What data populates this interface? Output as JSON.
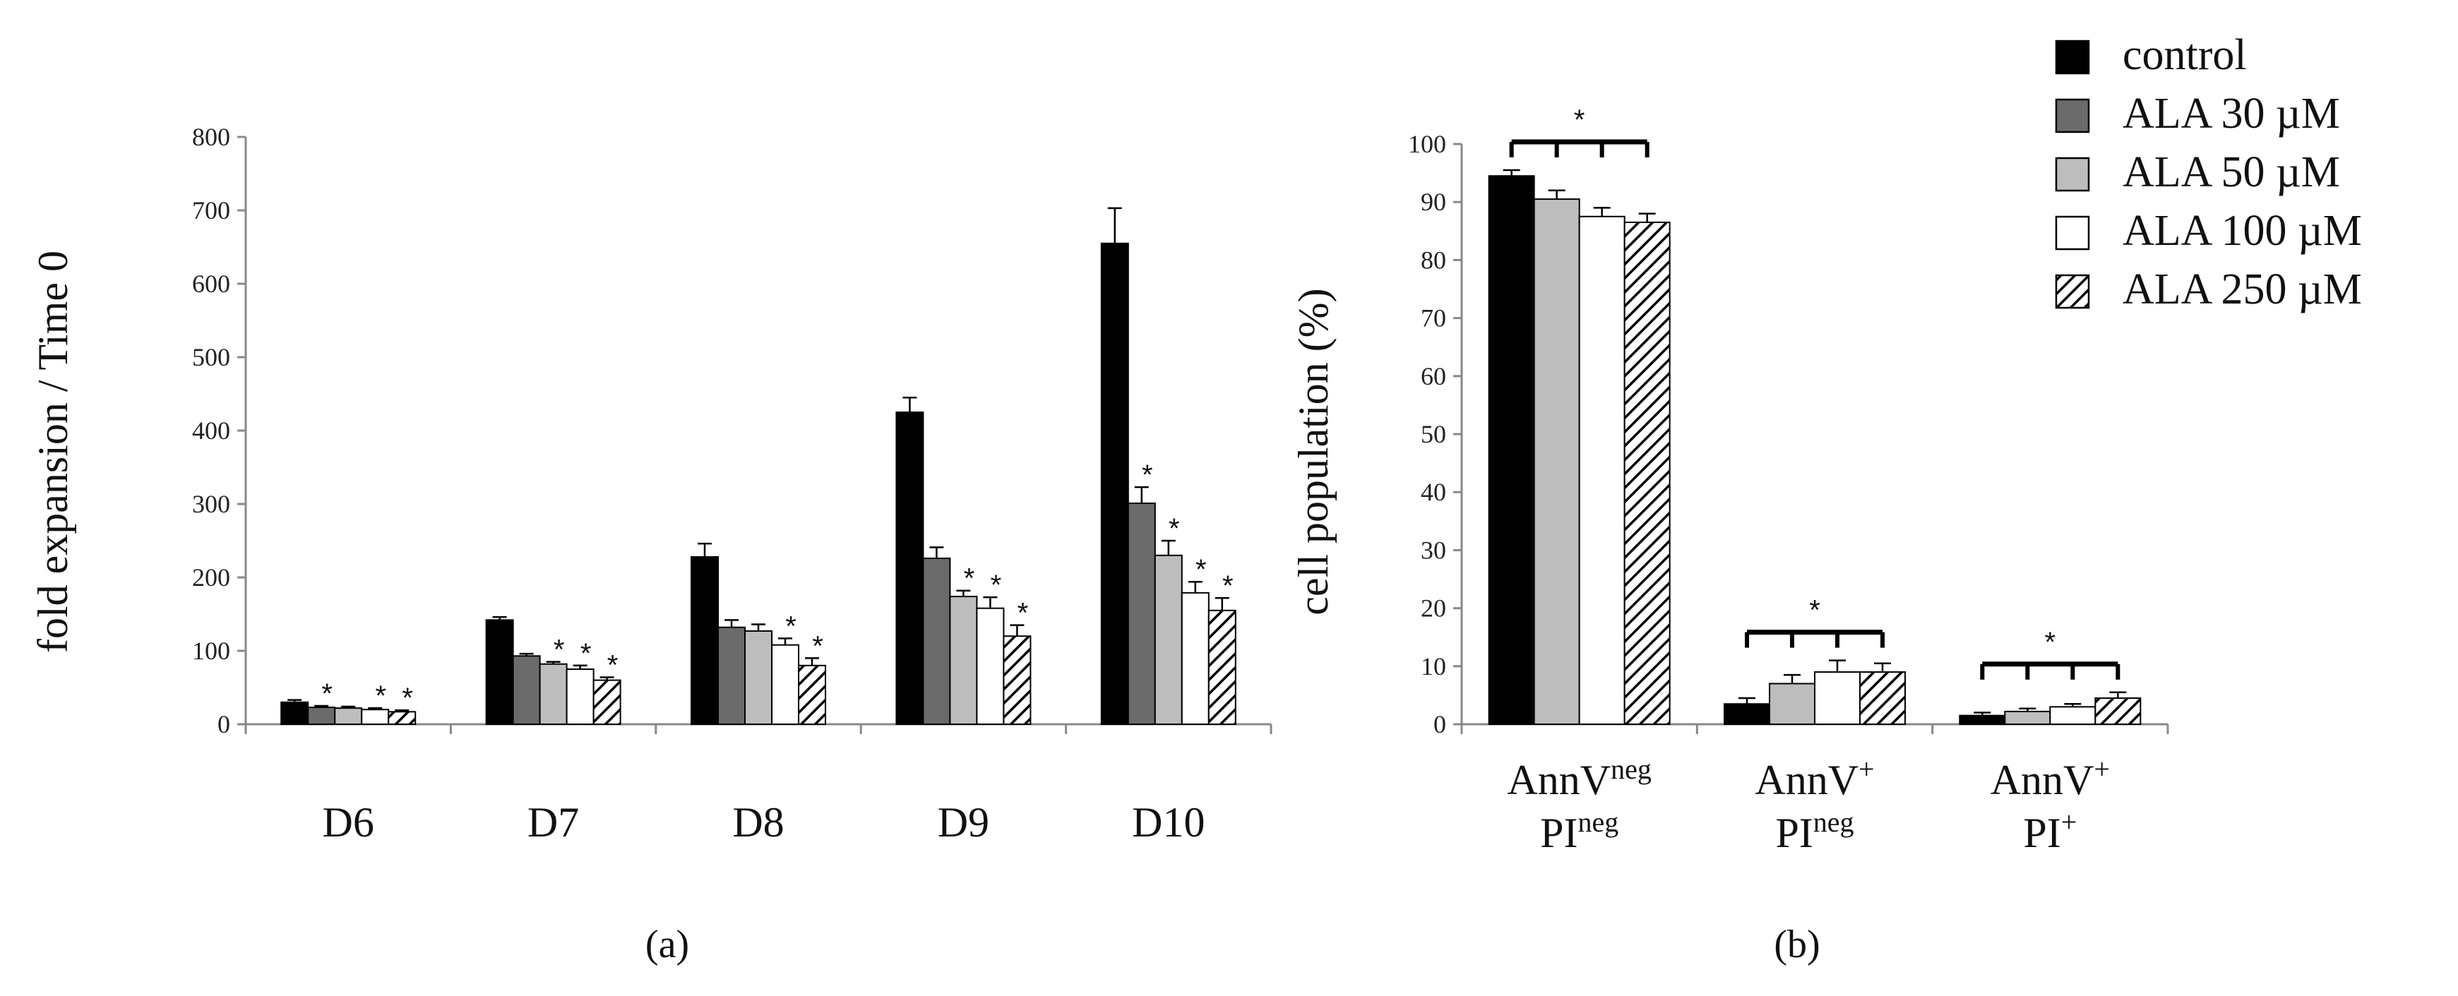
{
  "colors": {
    "control": "#000000",
    "ala30": "#6b6b6b",
    "ala50": "#bdbdbd",
    "ala100": "#ffffff",
    "ala250": "hatched",
    "axis": "#888888",
    "text": "#111111"
  },
  "legend": {
    "position": "top-right",
    "entries": [
      {
        "key": "control",
        "label": "control"
      },
      {
        "key": "ala30",
        "label": "ALA 30 µM"
      },
      {
        "key": "ala50",
        "label": "ALA 50 µM"
      },
      {
        "key": "ala100",
        "label": "ALA 100 µM"
      },
      {
        "key": "ala250",
        "label": "ALA 250 µM"
      }
    ]
  },
  "chart_data": [
    {
      "panel_label": "(a)",
      "type": "bar",
      "ylabel": "fold expansion / Time 0",
      "ylim": [
        0,
        800
      ],
      "yticks": [
        0,
        100,
        200,
        300,
        400,
        500,
        600,
        700,
        800
      ],
      "grid": false,
      "categories": [
        "D6",
        "D7",
        "D8",
        "D9",
        "D10"
      ],
      "series": [
        {
          "name": "control",
          "key": "control",
          "values": [
            30,
            142,
            228,
            425,
            655
          ],
          "errors": [
            3,
            4,
            18,
            20,
            48
          ],
          "stars": [
            false,
            false,
            false,
            false,
            false
          ]
        },
        {
          "name": "ALA 30 µM",
          "key": "ala30",
          "values": [
            23,
            93,
            132,
            226,
            301
          ],
          "errors": [
            2,
            3,
            10,
            15,
            22
          ],
          "stars": [
            true,
            false,
            false,
            false,
            true
          ]
        },
        {
          "name": "ALA 50 µM",
          "key": "ala50",
          "values": [
            22,
            82,
            127,
            174,
            230
          ],
          "errors": [
            2,
            3,
            9,
            8,
            20
          ],
          "stars": [
            false,
            true,
            false,
            true,
            true
          ]
        },
        {
          "name": "ALA 100 µM",
          "key": "ala100",
          "values": [
            20,
            75,
            108,
            158,
            179
          ],
          "errors": [
            2,
            5,
            9,
            15,
            15
          ],
          "stars": [
            true,
            true,
            true,
            true,
            true
          ]
        },
        {
          "name": "ALA 250 µM",
          "key": "ala250",
          "values": [
            17,
            60,
            80,
            120,
            155
          ],
          "errors": [
            2,
            4,
            10,
            15,
            17
          ],
          "stars": [
            true,
            true,
            true,
            true,
            true
          ]
        }
      ]
    },
    {
      "panel_label": "(b)",
      "type": "bar",
      "ylabel": "cell population (%)",
      "ylim": [
        0,
        100
      ],
      "yticks": [
        0,
        10,
        20,
        30,
        40,
        50,
        60,
        70,
        80,
        90,
        100
      ],
      "grid": false,
      "categories": [
        {
          "line1": "AnnV",
          "sup1": "neg",
          "line2": "PI",
          "sup2": "neg"
        },
        {
          "line1": "AnnV",
          "sup1": "+",
          "line2": "PI",
          "sup2": "neg"
        },
        {
          "line1": "AnnV",
          "sup1": "+",
          "line2": "PI",
          "sup2": "+"
        }
      ],
      "series": [
        {
          "name": "control",
          "key": "control",
          "values": [
            94.5,
            3.5,
            1.5
          ],
          "errors": [
            1,
            1,
            0.5
          ]
        },
        {
          "name": "ALA 50 µM",
          "key": "ala50",
          "values": [
            90.5,
            7,
            2.2
          ],
          "errors": [
            1.5,
            1.5,
            0.5
          ]
        },
        {
          "name": "ALA 100 µM",
          "key": "ala100",
          "values": [
            87.5,
            9,
            3
          ],
          "errors": [
            1.5,
            2,
            0.5
          ]
        },
        {
          "name": "ALA 250 µM",
          "key": "ala250",
          "values": [
            86.5,
            9,
            4.5
          ],
          "errors": [
            1.5,
            1.5,
            1
          ]
        }
      ],
      "significance": [
        "*",
        "*",
        "*"
      ]
    }
  ]
}
